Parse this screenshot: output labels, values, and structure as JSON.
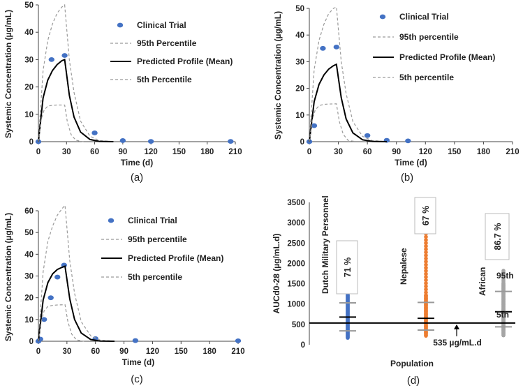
{
  "chart_data": [
    {
      "type": "line",
      "panel": "a",
      "caption": "(a)",
      "xlabel": "Time (d)",
      "ylabel": "Systemic Concentration (µg/mL)",
      "xlim": [
        0,
        210
      ],
      "ylim": [
        0,
        50
      ],
      "xticks": [
        0,
        30,
        60,
        90,
        120,
        150,
        180,
        210
      ],
      "yticks": [
        0,
        10,
        20,
        30,
        40,
        50
      ],
      "series": [
        {
          "name": "Clinical Trial",
          "kind": "points",
          "x": [
            0,
            14,
            28,
            60,
            90,
            120,
            205
          ],
          "y": [
            0,
            30,
            31.5,
            3.2,
            0.4,
            0.1,
            0.1
          ]
        },
        {
          "name": "95th Percentile",
          "kind": "dashed",
          "x": [
            0,
            5,
            10,
            15,
            20,
            25,
            28,
            33,
            38,
            45,
            55,
            65,
            80
          ],
          "y": [
            0,
            26,
            37,
            43,
            47,
            49.2,
            50,
            30,
            18,
            7.5,
            2,
            0.4,
            0
          ]
        },
        {
          "name": "Predicted Profile (Mean)",
          "kind": "solid",
          "x": [
            0,
            5,
            10,
            15,
            20,
            25,
            28,
            33,
            38,
            45,
            55,
            65,
            80
          ],
          "y": [
            0,
            16,
            22.5,
            26,
            28.2,
            29.6,
            30,
            17,
            9,
            3.5,
            0.8,
            0.1,
            0
          ]
        },
        {
          "name": "5th Percentile",
          "kind": "dashed",
          "x": [
            0,
            3,
            6,
            10,
            15,
            20,
            28,
            31,
            35,
            40,
            48
          ],
          "y": [
            0,
            8,
            11.5,
            13,
            13.3,
            13.4,
            13.4,
            7,
            2.5,
            0.5,
            0
          ]
        }
      ],
      "legend": [
        "Clinical Trial",
        "95th Percentile",
        "Predicted Profile (Mean)",
        "5th Percentile"
      ]
    },
    {
      "type": "line",
      "panel": "b",
      "caption": "(b)",
      "xlabel": "Time (d)",
      "ylabel": "Systemic Concentration (µg/mL)",
      "xlim": [
        0,
        210
      ],
      "ylim": [
        0,
        50
      ],
      "xticks": [
        0,
        30,
        60,
        90,
        120,
        150,
        180,
        210
      ],
      "yticks": [
        0,
        10,
        20,
        30,
        40,
        50
      ],
      "series": [
        {
          "name": "Clinical Trial",
          "kind": "points",
          "x": [
            0,
            5,
            14,
            28,
            60,
            80,
            102
          ],
          "y": [
            0,
            6,
            35,
            35.5,
            2.3,
            0.5,
            0.3
          ]
        },
        {
          "name": "95th percentile",
          "kind": "dashed",
          "x": [
            0,
            5,
            10,
            15,
            20,
            25,
            28,
            33,
            38,
            45,
            55,
            65,
            80
          ],
          "y": [
            0,
            27,
            38,
            44,
            48,
            50,
            50.5,
            30,
            18,
            7.5,
            2,
            0.4,
            0
          ]
        },
        {
          "name": "Predicted Profile (Mean)",
          "kind": "solid",
          "x": [
            0,
            5,
            10,
            15,
            20,
            25,
            28,
            33,
            38,
            45,
            55,
            65,
            80
          ],
          "y": [
            0,
            15,
            21.5,
            25,
            27.2,
            28.5,
            29,
            16.5,
            8.5,
            3.3,
            0.7,
            0.1,
            0
          ]
        },
        {
          "name": "5th percentile",
          "kind": "dashed",
          "x": [
            0,
            3,
            6,
            10,
            15,
            20,
            28,
            31,
            35,
            40,
            48
          ],
          "y": [
            0,
            8,
            11.8,
            13.5,
            14,
            14.1,
            14.2,
            7.5,
            2.8,
            0.5,
            0
          ]
        }
      ],
      "legend": [
        "Clinical Trial",
        "95th percentile",
        "Predicted Profile (Mean)",
        "5th percentile"
      ]
    },
    {
      "type": "line",
      "panel": "c",
      "caption": "(c)",
      "xlabel": "Time (d)",
      "ylabel": "Systemic Concentration (µg/mL)",
      "xlim": [
        0,
        210
      ],
      "ylim": [
        0,
        60
      ],
      "xticks": [
        0,
        30,
        60,
        90,
        120,
        150,
        180,
        210
      ],
      "yticks": [
        0,
        10,
        20,
        30,
        40,
        50,
        60
      ],
      "series": [
        {
          "name": "Clinical Trial",
          "kind": "points",
          "x": [
            0,
            2,
            6,
            13,
            20,
            27,
            60,
            102,
            210
          ],
          "y": [
            0,
            1,
            10,
            20,
            29.5,
            35,
            1.2,
            0.3,
            0.2
          ]
        },
        {
          "name": "95th percentile",
          "kind": "dashed",
          "x": [
            0,
            5,
            10,
            15,
            20,
            25,
            28,
            33,
            38,
            45,
            55,
            65,
            80
          ],
          "y": [
            0,
            32,
            46,
            53,
            58,
            61,
            62.5,
            37,
            22,
            9,
            2.5,
            0.5,
            0
          ]
        },
        {
          "name": "Predicted Profile (Mean)",
          "kind": "solid",
          "x": [
            0,
            5,
            10,
            15,
            20,
            25,
            28,
            33,
            38,
            45,
            55,
            65,
            80
          ],
          "y": [
            0,
            19,
            27,
            31,
            33,
            34,
            34.5,
            19.5,
            10,
            3.8,
            0.8,
            0.1,
            0
          ]
        },
        {
          "name": "5th percentile",
          "kind": "dashed",
          "x": [
            0,
            3,
            6,
            10,
            15,
            20,
            28,
            31,
            35,
            40,
            48
          ],
          "y": [
            0,
            9,
            14,
            16,
            16.5,
            16.7,
            16.8,
            9,
            3.3,
            0.6,
            0
          ]
        }
      ],
      "legend": [
        "Clinical Trial",
        "95th percentile",
        "Predicted Profile (Mean)",
        "5th percentile"
      ]
    },
    {
      "type": "scatter",
      "panel": "d",
      "caption": "(d)",
      "xlabel": "Population",
      "ylabel": "AUCd0-28 (µg/mL.d)",
      "ylim": [
        0,
        3500
      ],
      "yticks": [
        0,
        500,
        1000,
        1500,
        2000,
        2500,
        3000,
        3500
      ],
      "threshold": {
        "value": 535,
        "label": "535 µg/mL.d"
      },
      "percentile_labels": {
        "upper": "95th",
        "lower": "5th"
      },
      "groups": [
        {
          "name": "Dutch Military Personnel",
          "color": "#4472C4",
          "pct_above": "71 %",
          "min": 170,
          "max": 1400,
          "p5": 340,
          "mean": 680,
          "p95": 1030
        },
        {
          "name": "Nepalese",
          "color": "#ED7D31",
          "pct_above": "67 %",
          "min": 220,
          "max": 3260,
          "p5": 360,
          "mean": 650,
          "p95": 1040
        },
        {
          "name": "African",
          "color": "#A5A5A5",
          "pct_above": "86.7 %",
          "min": 230,
          "max": 1820,
          "p5": 440,
          "mean": 810,
          "p95": 1310
        }
      ]
    }
  ]
}
